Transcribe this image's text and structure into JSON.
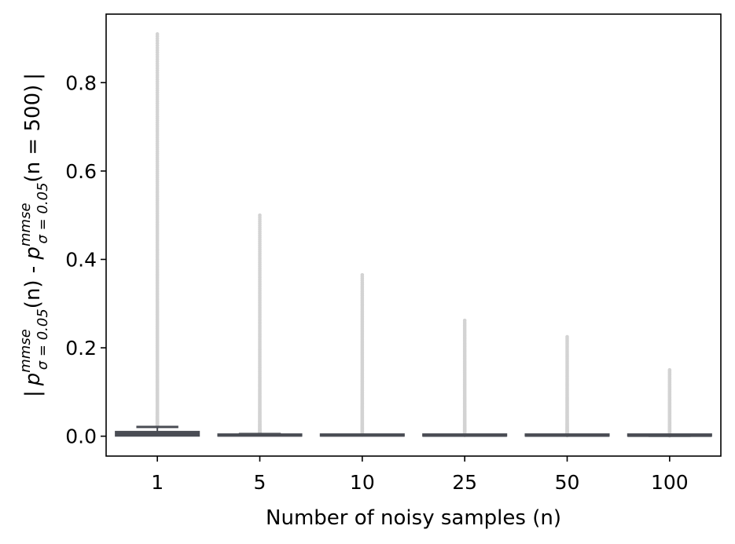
{
  "chart_data": {
    "type": "box",
    "xlabel": "Number of noisy samples (n)",
    "ylabel": {
      "bar_left": "|",
      "p1": "p",
      "sup1": "mmse",
      "sub1": "σ = 0.05",
      "arg1": "(n)",
      "minus": " - ",
      "p2": "p",
      "sup2": "mmse",
      "sub2": "σ = 0.05",
      "arg2": "(n = 500)",
      "bar_right": "|"
    },
    "ylim": [
      -0.045,
      0.955
    ],
    "yticks": [
      0.0,
      0.2,
      0.4,
      0.6,
      0.8
    ],
    "ytick_labels": [
      "0.0",
      "0.2",
      "0.4",
      "0.6",
      "0.8"
    ],
    "categories": [
      "1",
      "5",
      "10",
      "25",
      "50",
      "100"
    ],
    "boxes": [
      {
        "q1": 0.0,
        "median": 0.003,
        "q3": 0.011,
        "whisker_low": 0.0,
        "whisker_high": 0.021,
        "outlier_max": 0.91
      },
      {
        "q1": 0.0,
        "median": 0.001,
        "q3": 0.003,
        "whisker_low": 0.0,
        "whisker_high": 0.005,
        "outlier_max": 0.5
      },
      {
        "q1": 0.0,
        "median": 0.001,
        "q3": 0.002,
        "whisker_low": 0.0,
        "whisker_high": 0.003,
        "outlier_max": 0.365
      },
      {
        "q1": 0.0,
        "median": 0.0005,
        "q3": 0.0015,
        "whisker_low": 0.0,
        "whisker_high": 0.002,
        "outlier_max": 0.262
      },
      {
        "q1": 0.0,
        "median": 0.0004,
        "q3": 0.001,
        "whisker_low": 0.0,
        "whisker_high": 0.0015,
        "outlier_max": 0.225
      },
      {
        "q1": 0.0,
        "median": 0.0003,
        "q3": 0.0008,
        "whisker_low": 0.0,
        "whisker_high": 0.001,
        "outlier_max": 0.15
      }
    ],
    "colors": {
      "box": "#4a4d54",
      "outlier": "#d3d3d3",
      "frame": "#000000"
    }
  }
}
